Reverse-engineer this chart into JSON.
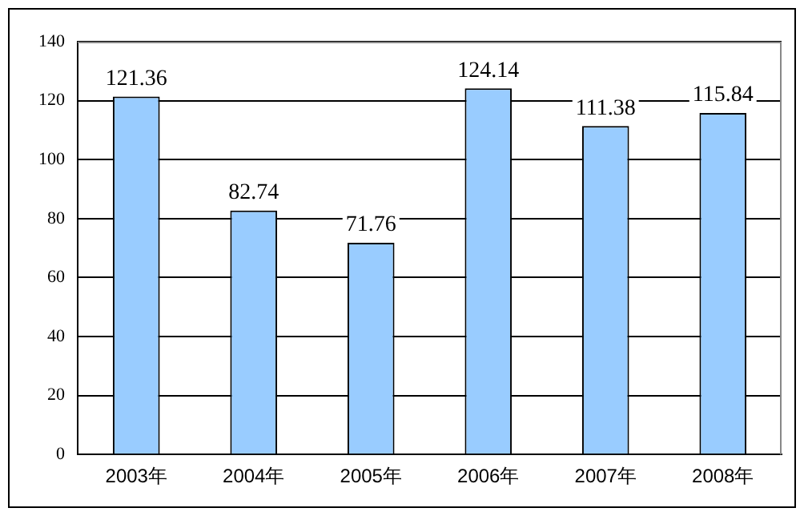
{
  "chart_data": {
    "type": "bar",
    "categories": [
      "2003年",
      "2004年",
      "2005年",
      "2006年",
      "2007年",
      "2008年"
    ],
    "values": [
      121.36,
      82.74,
      71.76,
      124.14,
      111.38,
      115.84
    ],
    "color": "#99ccff",
    "ylim": [
      0,
      140
    ],
    "yticks": [
      0,
      20,
      40,
      60,
      80,
      100,
      120,
      140
    ],
    "grid": "y",
    "data_labels": true
  }
}
